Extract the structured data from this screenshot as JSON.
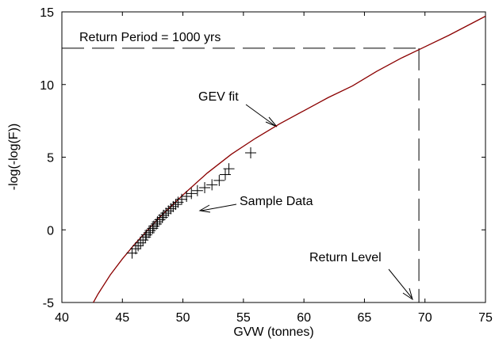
{
  "chart_data": {
    "type": "scatter",
    "xlabel": "GVW (tonnes)",
    "ylabel": "-log(-log(F))",
    "xlim": [
      40,
      75
    ],
    "ylim": [
      -5,
      15
    ],
    "xticks": [
      40,
      45,
      50,
      55,
      60,
      65,
      70,
      75
    ],
    "yticks": [
      -5,
      0,
      5,
      10,
      15
    ],
    "series": [
      {
        "name": "GEV fit",
        "color": "#8b0000",
        "line": true,
        "x": [
          42.6,
          43,
          44,
          45,
          46,
          47,
          48,
          49,
          50,
          52,
          54,
          56,
          58,
          60,
          62,
          64,
          66,
          68,
          70,
          72,
          75
        ],
        "values": [
          -5,
          -4.4,
          -3.1,
          -2.0,
          -1.0,
          -0.1,
          0.8,
          1.6,
          2.4,
          3.9,
          5.2,
          6.3,
          7.3,
          8.2,
          9.1,
          9.9,
          10.9,
          11.8,
          12.6,
          13.4,
          14.7
        ]
      },
      {
        "name": "Sample Data",
        "color": "#000000",
        "line": false,
        "x": [
          45.8,
          46.1,
          46.3,
          46.5,
          46.7,
          46.9,
          47.0,
          47.2,
          47.3,
          47.5,
          47.6,
          47.8,
          47.9,
          48.1,
          48.3,
          48.4,
          48.6,
          48.8,
          49.0,
          49.2,
          49.4,
          49.6,
          49.9,
          50.3,
          50.7,
          51.2,
          51.8,
          52.4,
          53.0,
          53.5,
          53.8,
          55.6
        ],
        "values": [
          -1.6,
          -1.3,
          -1.1,
          -0.9,
          -0.7,
          -0.5,
          -0.35,
          -0.2,
          -0.05,
          0.1,
          0.25,
          0.4,
          0.55,
          0.7,
          0.85,
          1.0,
          1.15,
          1.3,
          1.45,
          1.6,
          1.75,
          1.9,
          2.1,
          2.3,
          2.5,
          2.7,
          2.9,
          3.1,
          3.4,
          3.8,
          4.2,
          5.3
        ]
      }
    ],
    "return_period_label": "Return Period = 1000 yrs",
    "return_level_label": "Return Level",
    "return_level": {
      "x": 69.5,
      "y": 12.5
    }
  }
}
